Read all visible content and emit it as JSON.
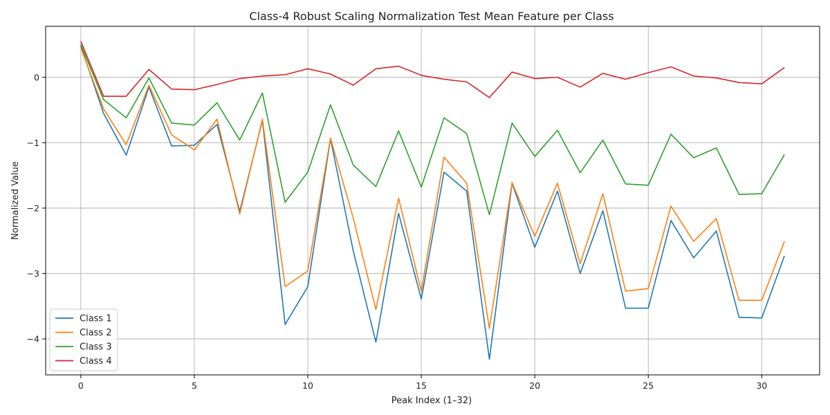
{
  "chart_data": {
    "type": "line",
    "title": "Class-4 Robust Scaling Normalization Test Mean Feature per Class",
    "xlabel": "Peak Index (1–32)",
    "ylabel": "Normalized Value",
    "xlim": [
      -1.55,
      32.55
    ],
    "ylim": [
      -4.55,
      0.78
    ],
    "xticks": [
      0,
      5,
      10,
      15,
      20,
      25,
      30
    ],
    "yticks": [
      0,
      -1,
      -2,
      -3,
      -4
    ],
    "grid": true,
    "legend_position": "lower-left",
    "x": [
      0,
      1,
      2,
      3,
      4,
      5,
      6,
      7,
      8,
      9,
      10,
      11,
      12,
      13,
      14,
      15,
      16,
      17,
      18,
      19,
      20,
      21,
      22,
      23,
      24,
      25,
      26,
      27,
      28,
      29,
      30,
      31
    ],
    "series": [
      {
        "name": "Class 1",
        "color": "#1f77b4",
        "values": [
          0.48,
          -0.55,
          -1.19,
          -0.15,
          -1.05,
          -1.04,
          -0.72,
          -2.05,
          -0.66,
          -3.78,
          -3.2,
          -0.94,
          -2.65,
          -4.05,
          -2.08,
          -3.39,
          -1.45,
          -1.74,
          -4.31,
          -1.62,
          -2.6,
          -1.74,
          -3.0,
          -2.04,
          -3.53,
          -3.53,
          -2.19,
          -2.76,
          -2.35,
          -3.67,
          -3.68,
          -2.73
        ]
      },
      {
        "name": "Class 2",
        "color": "#ff7f0e",
        "values": [
          0.45,
          -0.48,
          -1.03,
          -0.12,
          -0.88,
          -1.11,
          -0.64,
          -2.09,
          -0.64,
          -3.2,
          -2.96,
          -0.93,
          -2.15,
          -3.55,
          -1.85,
          -3.27,
          -1.22,
          -1.62,
          -3.84,
          -1.61,
          -2.43,
          -1.62,
          -2.85,
          -1.78,
          -3.27,
          -3.23,
          -1.97,
          -2.51,
          -2.16,
          -3.41,
          -3.41,
          -2.51
        ]
      },
      {
        "name": "Class 3",
        "color": "#2ca02c",
        "values": [
          0.5,
          -0.34,
          -0.62,
          -0.01,
          -0.7,
          -0.73,
          -0.39,
          -0.96,
          -0.24,
          -1.91,
          -1.45,
          -0.42,
          -1.34,
          -1.67,
          -0.82,
          -1.68,
          -0.62,
          -0.86,
          -2.1,
          -0.7,
          -1.21,
          -0.81,
          -1.46,
          -0.96,
          -1.63,
          -1.65,
          -0.87,
          -1.23,
          -1.08,
          -1.79,
          -1.78,
          -1.18
        ]
      },
      {
        "name": "Class 4",
        "color": "#d62728",
        "values": [
          0.55,
          -0.29,
          -0.29,
          0.12,
          -0.18,
          -0.19,
          -0.11,
          -0.02,
          0.02,
          0.04,
          0.13,
          0.05,
          -0.12,
          0.13,
          0.17,
          0.03,
          -0.03,
          -0.07,
          -0.31,
          0.08,
          -0.02,
          0.0,
          -0.15,
          0.06,
          -0.03,
          0.07,
          0.16,
          0.02,
          -0.01,
          -0.08,
          -0.1,
          0.15
        ]
      }
    ]
  }
}
